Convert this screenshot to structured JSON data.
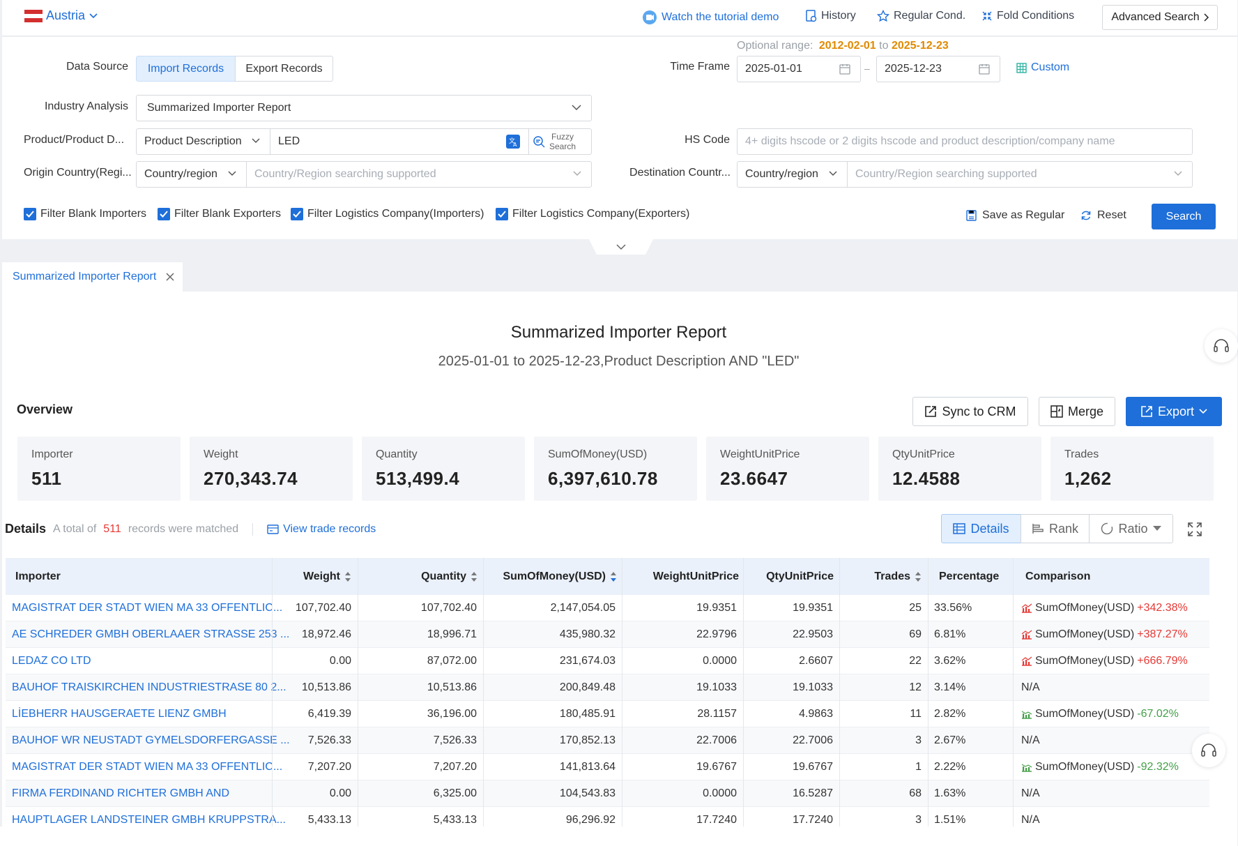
{
  "header": {
    "country": "Austria",
    "tutorial": "Watch the tutorial demo",
    "history": "History",
    "regular": "Regular Cond.",
    "fold": "Fold Conditions",
    "advanced": "Advanced Search"
  },
  "filters": {
    "data_source_label": "Data Source",
    "import_records": "Import Records",
    "export_records": "Export Records",
    "optional_range_label": "Optional range:",
    "range_start": "2012-02-01",
    "range_to": "to",
    "range_end": "2025-12-23",
    "time_frame_label": "Time Frame",
    "date_from": "2025-01-01",
    "date_sep": "–",
    "date_to": "2025-12-23",
    "custom": "Custom",
    "industry_label": "Industry Analysis",
    "industry_value": "Summarized Importer Report",
    "product_label": "Product/Product D...",
    "product_type": "Product Description",
    "product_value": "LED",
    "fuzzy_line1": "Fuzzy",
    "fuzzy_line2": "Search",
    "hs_label": "HS Code",
    "hs_placeholder": "4+ digits hscode or 2 digits hscode and product description/company name",
    "origin_label": "Origin Country(Regi...",
    "origin_type": "Country/region",
    "origin_placeholder": "Country/Region searching supported",
    "dest_label": "Destination Countr...",
    "dest_type": "Country/region",
    "dest_placeholder": "Country/Region searching supported",
    "cb1": "Filter Blank Importers",
    "cb2": "Filter Blank Exporters",
    "cb3": "Filter Logistics Company(Importers)",
    "cb4": "Filter Logistics Company(Exporters)",
    "save_regular": "Save as Regular",
    "reset": "Reset",
    "search": "Search"
  },
  "tabs": [
    {
      "label": "Summarized Importer Report"
    }
  ],
  "report": {
    "title": "Summarized Importer Report",
    "subtitle": "2025-01-01 to 2025-12-23,Product Description AND \"LED\"",
    "overview": "Overview",
    "sync_crm": "Sync to CRM",
    "merge": "Merge",
    "export": "Export"
  },
  "stats": [
    {
      "label": "Importer",
      "value": "511"
    },
    {
      "label": "Weight",
      "value": "270,343.74"
    },
    {
      "label": "Quantity",
      "value": "513,499.4"
    },
    {
      "label": "SumOfMoney(USD)",
      "value": "6,397,610.78"
    },
    {
      "label": "WeightUnitPrice",
      "value": "23.6647"
    },
    {
      "label": "QtyUnitPrice",
      "value": "12.4588"
    },
    {
      "label": "Trades",
      "value": "1,262"
    }
  ],
  "details": {
    "title": "Details",
    "total_prefix": "A total of",
    "count": "511",
    "total_suffix": "records were matched",
    "view_trade": "View trade records",
    "view_details": "Details",
    "view_rank": "Rank",
    "view_ratio": "Ratio"
  },
  "table": {
    "columns": [
      "Importer",
      "Weight",
      "Quantity",
      "SumOfMoney(USD)",
      "WeightUnitPrice",
      "QtyUnitPrice",
      "Trades",
      "Percentage",
      "Comparison"
    ],
    "rows": [
      {
        "importer": "MAGISTRAT DER STADT WIEN MA 33 OFFENTLIC...",
        "weight": "107,702.40",
        "quantity": "107,702.40",
        "sum": "2,147,054.05",
        "wup": "19.9351",
        "qup": "19.9351",
        "trades": "25",
        "pct": "33.56%",
        "cmp_label": "SumOfMoney(USD)",
        "cmp_value": "+342.38%",
        "trend": "up"
      },
      {
        "importer": "AE SCHREDER GMBH OBERLAAER STRASSE 253 ...",
        "weight": "18,972.46",
        "quantity": "18,996.71",
        "sum": "435,980.32",
        "wup": "22.9796",
        "qup": "22.9503",
        "trades": "69",
        "pct": "6.81%",
        "cmp_label": "SumOfMoney(USD)",
        "cmp_value": "+387.27%",
        "trend": "up"
      },
      {
        "importer": "LEDAZ CO LTD",
        "weight": "0.00",
        "quantity": "87,072.00",
        "sum": "231,674.03",
        "wup": "0.0000",
        "qup": "2.6607",
        "trades": "22",
        "pct": "3.62%",
        "cmp_label": "SumOfMoney(USD)",
        "cmp_value": "+666.79%",
        "trend": "up"
      },
      {
        "importer": "BAUHOF TRAISKIRCHEN INDUSTRIESTRASE 80 2...",
        "weight": "10,513.86",
        "quantity": "10,513.86",
        "sum": "200,849.48",
        "wup": "19.1033",
        "qup": "19.1033",
        "trades": "12",
        "pct": "3.14%",
        "cmp_label": "",
        "cmp_value": "N/A",
        "trend": "none"
      },
      {
        "importer": "LİEBHERR HAUSGERAETE LIENZ GMBH",
        "weight": "6,419.39",
        "quantity": "36,196.00",
        "sum": "180,485.91",
        "wup": "28.1157",
        "qup": "4.9863",
        "trades": "11",
        "pct": "2.82%",
        "cmp_label": "SumOfMoney(USD)",
        "cmp_value": "-67.02%",
        "trend": "down"
      },
      {
        "importer": "BAUHOF WR NEUSTADT GYMELSDORFERGASSE ...",
        "weight": "7,526.33",
        "quantity": "7,526.33",
        "sum": "170,852.13",
        "wup": "22.7006",
        "qup": "22.7006",
        "trades": "3",
        "pct": "2.67%",
        "cmp_label": "",
        "cmp_value": "N/A",
        "trend": "none"
      },
      {
        "importer": "MAGISTRAT DER STADT WIEN MA 33 OFFENTLIC...",
        "weight": "7,207.20",
        "quantity": "7,207.20",
        "sum": "141,813.64",
        "wup": "19.6767",
        "qup": "19.6767",
        "trades": "1",
        "pct": "2.22%",
        "cmp_label": "SumOfMoney(USD)",
        "cmp_value": "-92.32%",
        "trend": "down"
      },
      {
        "importer": "FIRMA FERDINAND RICHTER GMBH AND",
        "weight": "0.00",
        "quantity": "6,325.00",
        "sum": "104,543.83",
        "wup": "0.0000",
        "qup": "16.5287",
        "trades": "68",
        "pct": "1.63%",
        "cmp_label": "",
        "cmp_value": "N/A",
        "trend": "none"
      },
      {
        "importer": "HAUPTLAGER LANDSTEINER GMBH KRUPPSTRA...",
        "weight": "5,433.13",
        "quantity": "5,433.13",
        "sum": "96,296.92",
        "wup": "17.7240",
        "qup": "17.7240",
        "trades": "3",
        "pct": "1.51%",
        "cmp_label": "",
        "cmp_value": "N/A",
        "trend": "none"
      }
    ]
  },
  "colors": {
    "accent": "#1e6fd9",
    "orange": "#e08a00",
    "up": "#e53935",
    "down": "#43a047"
  }
}
